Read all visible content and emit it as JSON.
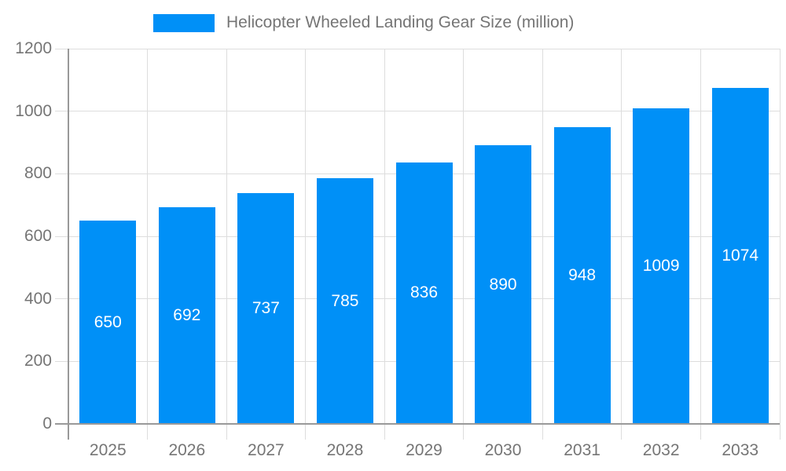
{
  "chart_data": {
    "type": "bar",
    "title": "Helicopter Wheeled Landing Gear Size (million)",
    "categories": [
      "2025",
      "2026",
      "2027",
      "2028",
      "2029",
      "2030",
      "2031",
      "2032",
      "2033"
    ],
    "values": [
      650,
      692,
      737,
      785,
      836,
      890,
      948,
      1009,
      1074
    ],
    "xlabel": "",
    "ylabel": "",
    "ylim": [
      0,
      1200
    ],
    "ytick_step": 200,
    "grid": true,
    "legend_position": "top",
    "value_labels": "inside-center",
    "colors": {
      "bar": "#0090f7",
      "grid": "#dddddd",
      "axis": "#999999",
      "text": "#757575",
      "value_label": "#ffffff",
      "background": "#ffffff"
    }
  }
}
